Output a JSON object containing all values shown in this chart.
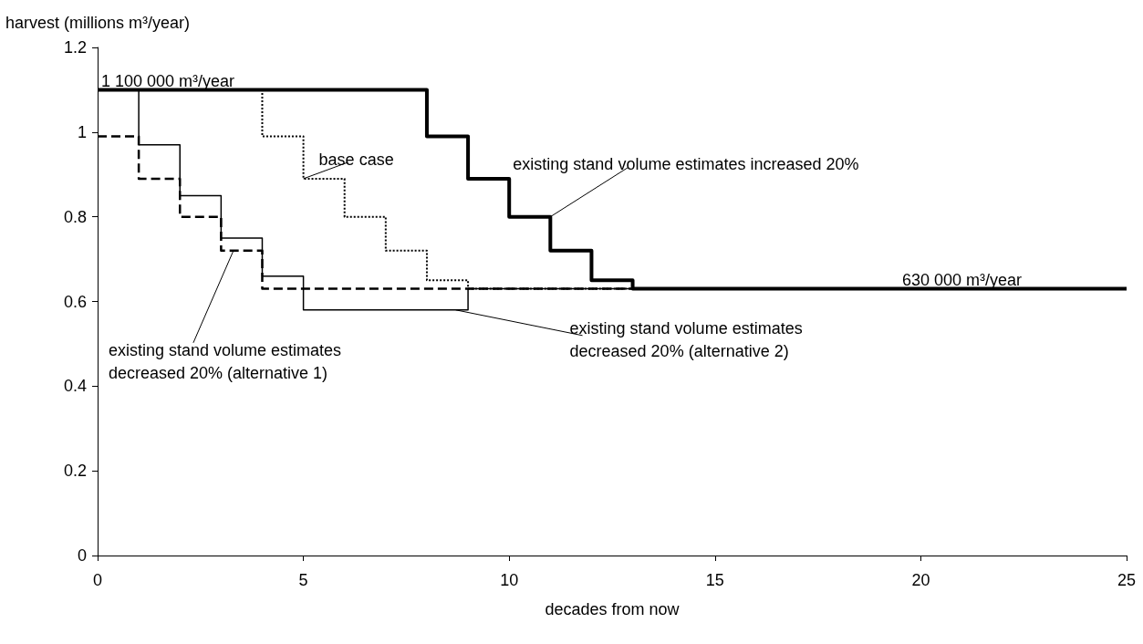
{
  "chart_data": {
    "type": "step",
    "ylabel": "harvest (millions m³/year)",
    "xlabel": "decades from now",
    "xlim": [
      0,
      25
    ],
    "xticks": [
      0,
      5,
      10,
      15,
      20,
      25
    ],
    "ylim": [
      0,
      1.2
    ],
    "yticks": [
      0,
      0.2,
      0.4,
      0.6,
      0.8,
      1,
      1.2
    ],
    "grid": false,
    "marker": "none",
    "series": [
      {
        "color": "#000000",
        "line_style": "dotted",
        "x": [
          0,
          4,
          5,
          6,
          7,
          8,
          9,
          25
        ],
        "values": [
          1.1,
          0.99,
          0.89,
          0.8,
          0.72,
          0.65,
          0.63,
          0.63
        ]
      },
      {
        "color": "#000000",
        "line_style": "dashed",
        "x": [
          0,
          1,
          2,
          3,
          4,
          25
        ],
        "values": [
          0.99,
          0.89,
          0.8,
          0.72,
          0.63,
          0.63
        ]
      },
      {
        "color": "#000000",
        "line_style": "solid",
        "x": [
          0,
          1,
          2,
          3,
          4,
          5,
          9,
          25
        ],
        "values": [
          1.1,
          0.97,
          0.85,
          0.75,
          0.66,
          0.58,
          0.63,
          0.63
        ]
      },
      {
        "color": "#000000",
        "line_style": "solid",
        "x": [
          0,
          8,
          9,
          10,
          11,
          12,
          13,
          25
        ],
        "values": [
          1.1,
          0.99,
          0.89,
          0.8,
          0.72,
          0.65,
          0.63,
          0.63
        ]
      }
    ],
    "annotations": [
      {
        "text": "1 100 000 m³/year",
        "x": 0,
        "y": 1.1
      },
      {
        "text": "630 000 m³/year",
        "x": 21,
        "y": 0.63
      },
      {
        "text": "base case",
        "x": 5,
        "y": 0.89
      },
      {
        "text": "existing stand volume estimates increased 20%",
        "x": 11,
        "y": 0.8
      },
      {
        "text": "existing stand volume estimates\ndecreased 20% (alternative 1)",
        "x": 3.3,
        "y": 0.72
      },
      {
        "text": "existing stand volume estimates\ndecreased 20% (alternative 2)",
        "x": 8.7,
        "y": 0.58
      }
    ]
  }
}
